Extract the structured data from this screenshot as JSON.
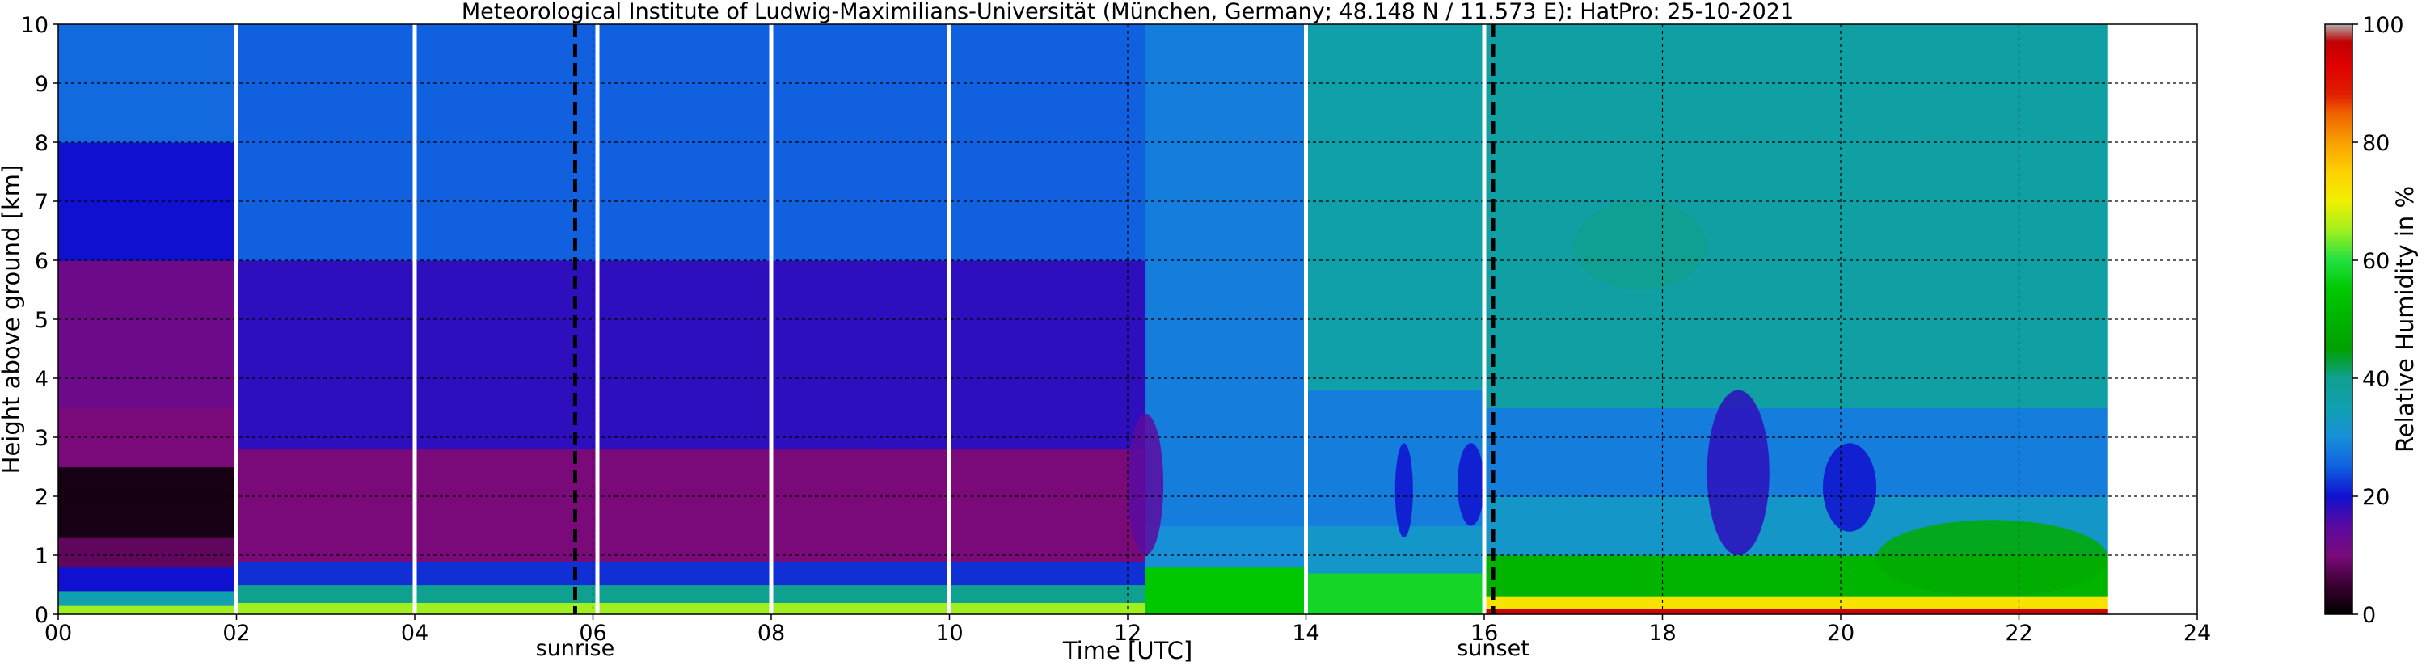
{
  "chart_data": [
    {
      "type": "heatmap",
      "title": "Meteorological Institute of Ludwig-Maximilians-Universität (München, Germany; 48.148 N / 11.573 E):    HatPro: 25-10-2021",
      "xlabel": "Time [UTC]",
      "ylabel": "Height above ground [km]",
      "xlim": [
        0,
        24
      ],
      "ylim": [
        0,
        10
      ],
      "data_end_hour": 23,
      "grid": true,
      "x_ticks": [
        {
          "value": 0,
          "label": "00"
        },
        {
          "value": 2,
          "label": "02"
        },
        {
          "value": 4,
          "label": "04"
        },
        {
          "value": 6,
          "label": "06"
        },
        {
          "value": 8,
          "label": "08"
        },
        {
          "value": 10,
          "label": "10"
        },
        {
          "value": 12,
          "label": "12"
        },
        {
          "value": 14,
          "label": "14"
        },
        {
          "value": 16,
          "label": "16"
        },
        {
          "value": 18,
          "label": "18"
        },
        {
          "value": 20,
          "label": "20"
        },
        {
          "value": 22,
          "label": "22"
        },
        {
          "value": 24,
          "label": "24"
        }
      ],
      "y_ticks": [
        0,
        1,
        2,
        3,
        4,
        5,
        6,
        7,
        8,
        9,
        10
      ],
      "annotations": [
        {
          "text": "sunrise",
          "x": 5.8
        },
        {
          "text": "sunset",
          "x": 16.1
        }
      ],
      "gap_lines_hours": [
        2,
        4,
        6.05,
        8,
        10,
        14,
        16
      ],
      "colorbar": {
        "label": "Relative Humidity in %",
        "range": [
          0,
          100
        ],
        "ticks": [
          0,
          20,
          40,
          60,
          80,
          100
        ]
      },
      "profiles": [
        {
          "hours": [
            0,
            2
          ],
          "layers": [
            {
              "from_km": 0,
              "to_km": 0.15,
              "rh_percent": 65
            },
            {
              "from_km": 0.15,
              "to_km": 0.4,
              "rh_percent": 35
            },
            {
              "from_km": 0.4,
              "to_km": 0.8,
              "rh_percent": 20
            },
            {
              "from_km": 0.8,
              "to_km": 1.3,
              "rh_percent": 8
            },
            {
              "from_km": 1.3,
              "to_km": 2.5,
              "rh_percent": 2
            },
            {
              "from_km": 2.5,
              "to_km": 3.5,
              "rh_percent": 10
            },
            {
              "from_km": 3.5,
              "to_km": 6,
              "rh_percent": 12
            },
            {
              "from_km": 6,
              "to_km": 8,
              "rh_percent": 20
            },
            {
              "from_km": 8,
              "to_km": 10,
              "rh_percent": 26
            }
          ]
        },
        {
          "hours": [
            2,
            12.2
          ],
          "layers": [
            {
              "from_km": 0,
              "to_km": 0.2,
              "rh_percent": 65
            },
            {
              "from_km": 0.2,
              "to_km": 0.5,
              "rh_percent": 40
            },
            {
              "from_km": 0.5,
              "to_km": 0.9,
              "rh_percent": 22
            },
            {
              "from_km": 0.9,
              "to_km": 2.8,
              "rh_percent": 10
            },
            {
              "from_km": 2.8,
              "to_km": 6,
              "rh_percent": 18
            },
            {
              "from_km": 6,
              "to_km": 10,
              "rh_percent": 25
            }
          ]
        },
        {
          "hours": [
            12.2,
            14
          ],
          "layers": [
            {
              "from_km": 0,
              "to_km": 0.8,
              "rh_percent": 55
            },
            {
              "from_km": 0.8,
              "to_km": 1.5,
              "rh_percent": 30
            },
            {
              "from_km": 1.5,
              "to_km": 10,
              "rh_percent": 28
            }
          ]
        },
        {
          "hours": [
            14,
            16
          ],
          "layers": [
            {
              "from_km": 0,
              "to_km": 0.7,
              "rh_percent": 58
            },
            {
              "from_km": 0.7,
              "to_km": 1.5,
              "rh_percent": 32
            },
            {
              "from_km": 1.5,
              "to_km": 3.8,
              "rh_percent": 28
            },
            {
              "from_km": 3.8,
              "to_km": 10,
              "rh_percent": 36
            }
          ]
        },
        {
          "hours": [
            16,
            23
          ],
          "layers": [
            {
              "from_km": 0,
              "to_km": 0.1,
              "rh_percent": 95
            },
            {
              "from_km": 0.1,
              "to_km": 0.3,
              "rh_percent": 72
            },
            {
              "from_km": 0.3,
              "to_km": 1,
              "rh_percent": 50
            },
            {
              "from_km": 1,
              "to_km": 2,
              "rh_percent": 32
            },
            {
              "from_km": 2,
              "to_km": 3.5,
              "rh_percent": 28
            },
            {
              "from_km": 3.5,
              "to_km": 10,
              "rh_percent": 37
            }
          ]
        }
      ],
      "features": [
        {
          "hours": [
            18.5,
            19.2
          ],
          "from_km": 1.0,
          "to_km": 3.8,
          "rh_percent": 18
        },
        {
          "hours": [
            19.8,
            20.4
          ],
          "from_km": 1.4,
          "to_km": 2.9,
          "rh_percent": 20
        },
        {
          "hours": [
            15.0,
            15.2
          ],
          "from_km": 1.3,
          "to_km": 2.9,
          "rh_percent": 20
        },
        {
          "hours": [
            15.7,
            16.0
          ],
          "from_km": 1.5,
          "to_km": 2.9,
          "rh_percent": 20
        },
        {
          "hours": [
            12.0,
            12.4
          ],
          "from_km": 1.0,
          "to_km": 3.4,
          "rh_percent": 15
        },
        {
          "hours": [
            17.0,
            18.5
          ],
          "from_km": 5.5,
          "to_km": 7.0,
          "rh_percent": 40
        },
        {
          "hours": [
            20.4,
            23
          ],
          "from_km": 0.3,
          "to_km": 1.6,
          "rh_percent": 48
        }
      ]
    }
  ]
}
